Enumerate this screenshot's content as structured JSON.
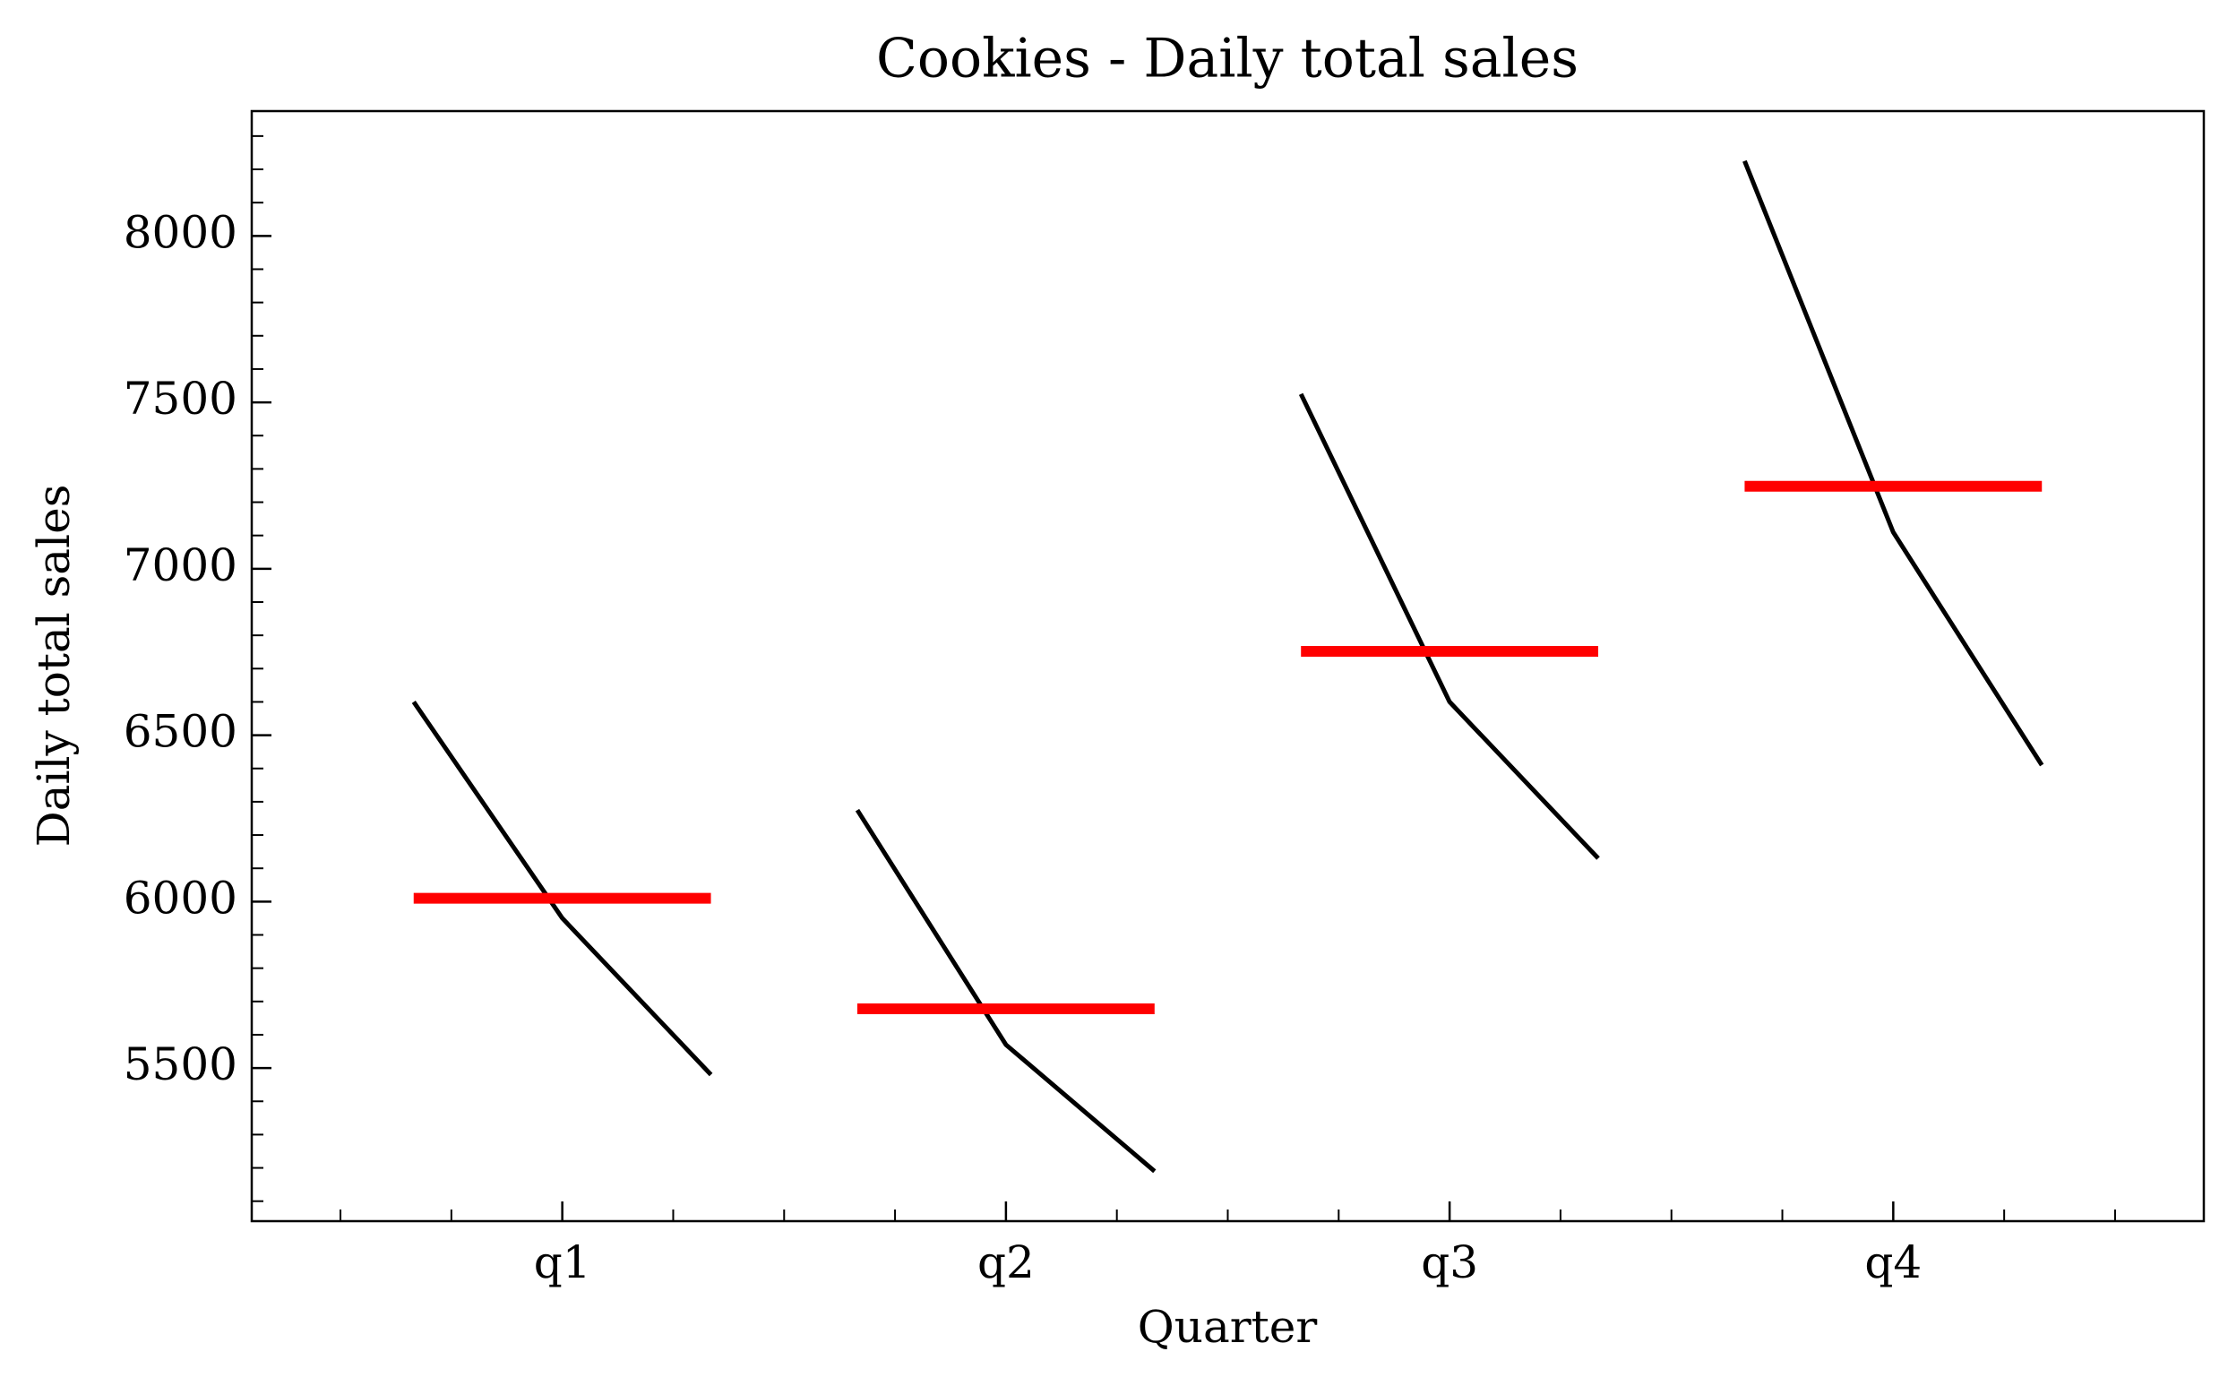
{
  "chart_data": {
    "type": "quarter",
    "title": "Cookies - Daily total sales",
    "xlabel": "Quarter",
    "ylabel": "Daily total sales",
    "categories": [
      "q1",
      "q2",
      "q3",
      "q4"
    ],
    "values": [
      [
        6600,
        5950,
        5480
      ],
      [
        6275,
        5570,
        5190
      ],
      [
        7525,
        6600,
        6130
      ],
      [
        8225,
        7110,
        6410
      ]
    ],
    "means": [
      6010,
      5678,
      6752,
      7248
    ],
    "line_color": "#000000",
    "mean_color": "#ff0000",
    "ylim": [
      5040,
      8375
    ],
    "yticks": [
      5500,
      6000,
      6500,
      7000,
      7500,
      8000
    ]
  }
}
